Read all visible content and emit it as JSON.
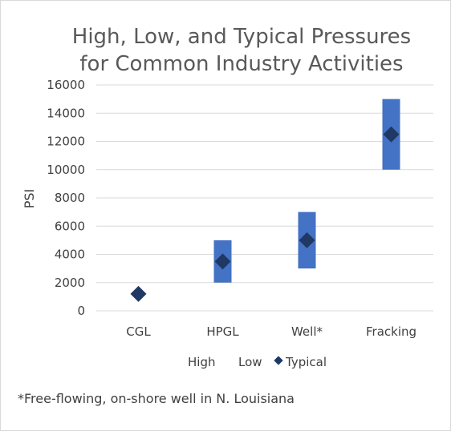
{
  "chart_data": {
    "type": "bar",
    "title_lines": [
      "High, Low, and Typical Pressures",
      "for Common Industry Activities"
    ],
    "ylabel": "PSI",
    "xlabel": "",
    "ylim": [
      0,
      16000
    ],
    "yticks": [
      0,
      2000,
      4000,
      6000,
      8000,
      10000,
      12000,
      14000,
      16000
    ],
    "grid": true,
    "categories": [
      "CGL",
      "HPGL",
      "Well*",
      "Fracking"
    ],
    "series": [
      {
        "name": "High",
        "values": [
          1200,
          5000,
          7000,
          15000
        ]
      },
      {
        "name": "Low",
        "values": [
          1200,
          2000,
          3000,
          10000
        ]
      },
      {
        "name": "Typical",
        "values": [
          1200,
          3500,
          5000,
          12500
        ]
      }
    ],
    "legend_position": "bottom",
    "colors": {
      "range_bar": "#4472c4",
      "typical_marker": "#203864",
      "grid": "#d9d9d9"
    },
    "footnote": "*Free-flowing, on-shore well in N. Louisiana"
  }
}
